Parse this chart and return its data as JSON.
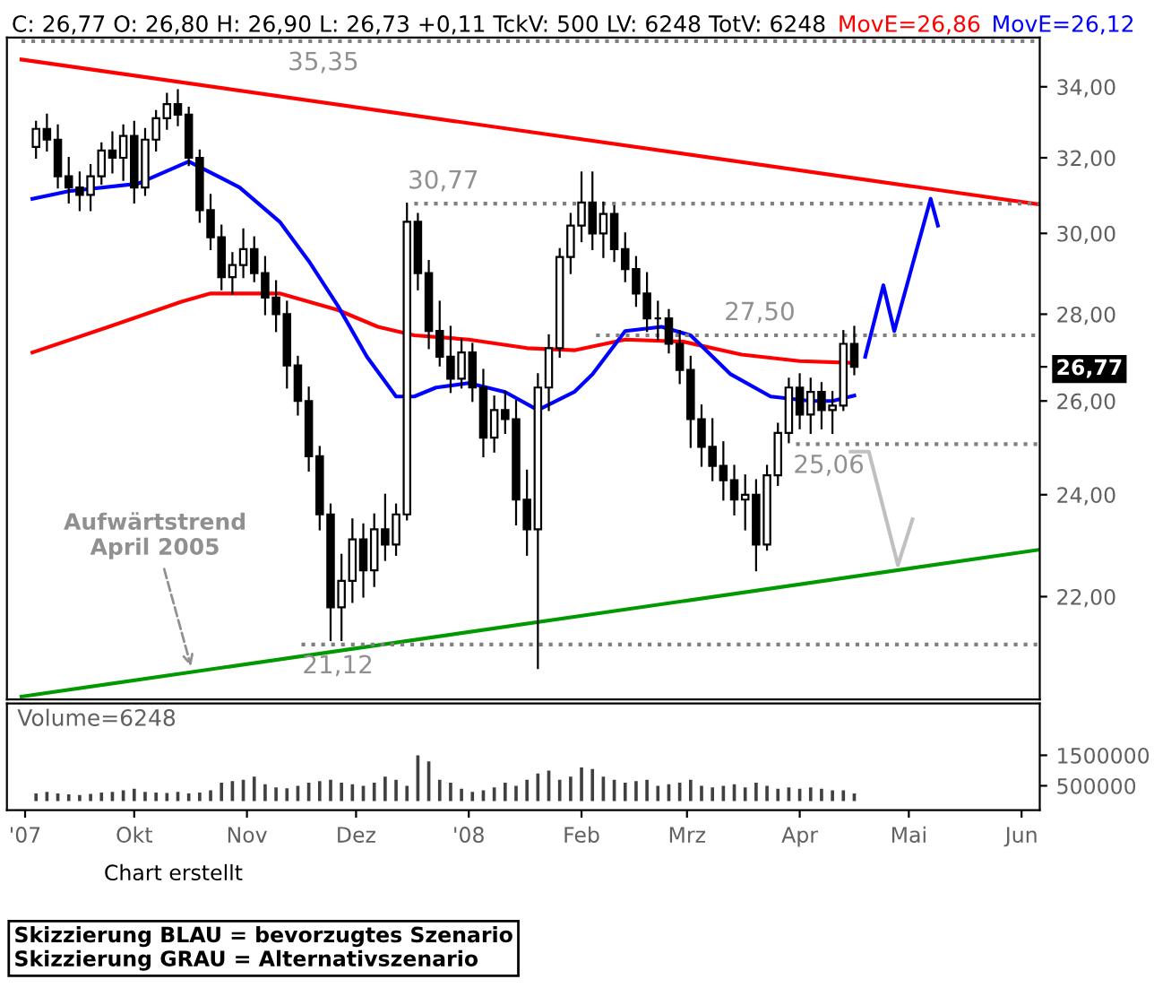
{
  "chart_data": [
    {
      "type": "candlestick",
      "title": "C: 26,77 O: 26,80 H: 26,90 L: 26,73 +0,11 TckV: 500 LV: 6248 TotV: 6248",
      "legend": "top",
      "log": true,
      "tick_labels": "y",
      "xlim": [
        "2007-08-27",
        "2008-06-06"
      ],
      "ylim": [
        20.15,
        35.46
      ],
      "yticks": [
        {
          "value": 22,
          "label": "22,00"
        },
        {
          "value": 24,
          "label": "24,00"
        },
        {
          "value": 26,
          "label": "26,00"
        },
        {
          "value": 26.77,
          "label": "26,77"
        },
        {
          "value": 28,
          "label": "28,00"
        },
        {
          "value": 30,
          "label": "30,00"
        },
        {
          "value": 32,
          "label": "32,00"
        },
        {
          "value": 34,
          "label": "34,00"
        }
      ],
      "x": [
        "2007-09-04",
        "2007-09-07",
        "2007-09-10",
        "2007-09-13",
        "2007-09-16",
        "2007-09-19",
        "2007-09-22",
        "2007-09-25",
        "2007-09-28",
        "2007-10-01",
        "2007-10-04",
        "2007-10-07",
        "2007-10-10",
        "2007-10-13",
        "2007-10-16",
        "2007-10-19",
        "2007-10-22",
        "2007-10-25",
        "2007-10-28",
        "2007-10-31",
        "2007-11-03",
        "2007-11-06",
        "2007-11-09",
        "2007-11-12",
        "2007-11-15",
        "2007-11-18",
        "2007-11-21",
        "2007-11-24",
        "2007-11-27",
        "2007-11-30",
        "2007-12-03",
        "2007-12-06",
        "2007-12-09",
        "2007-12-12",
        "2007-12-15",
        "2007-12-18",
        "2007-12-21",
        "2007-12-24",
        "2007-12-27",
        "2007-12-30",
        "2008-01-02",
        "2008-01-05",
        "2008-01-08",
        "2008-01-11",
        "2008-01-14",
        "2008-01-17",
        "2008-01-20",
        "2008-01-23",
        "2008-01-26",
        "2008-01-29",
        "2008-02-01",
        "2008-02-04",
        "2008-02-07",
        "2008-02-10",
        "2008-02-13",
        "2008-02-16",
        "2008-02-19",
        "2008-02-22",
        "2008-02-25",
        "2008-02-28",
        "2008-03-02",
        "2008-03-05",
        "2008-03-08",
        "2008-03-11",
        "2008-03-14",
        "2008-03-17",
        "2008-03-20",
        "2008-03-23",
        "2008-03-26",
        "2008-03-29",
        "2008-04-01",
        "2008-04-04",
        "2008-04-07",
        "2008-04-10",
        "2008-04-13",
        "2008-04-16"
      ],
      "ohlc": [
        [
          32.3,
          33.0,
          32.0,
          32.8
        ],
        [
          32.8,
          33.2,
          32.2,
          32.5
        ],
        [
          32.5,
          32.9,
          31.2,
          31.5
        ],
        [
          31.5,
          32.0,
          30.8,
          31.2
        ],
        [
          31.2,
          31.6,
          30.6,
          31.0
        ],
        [
          31.0,
          31.8,
          30.6,
          31.5
        ],
        [
          31.5,
          32.4,
          31.3,
          32.2
        ],
        [
          32.2,
          32.7,
          31.6,
          32.0
        ],
        [
          32.0,
          32.9,
          31.4,
          32.6
        ],
        [
          32.6,
          33.0,
          30.8,
          31.2
        ],
        [
          31.2,
          32.8,
          31.0,
          32.5
        ],
        [
          32.5,
          33.3,
          32.2,
          33.1
        ],
        [
          33.1,
          33.8,
          32.8,
          33.5
        ],
        [
          33.5,
          33.9,
          32.9,
          33.2
        ],
        [
          33.2,
          33.4,
          31.8,
          32.0
        ],
        [
          32.0,
          32.2,
          30.3,
          30.6
        ],
        [
          30.6,
          31.0,
          29.6,
          29.9
        ],
        [
          29.9,
          30.2,
          28.6,
          28.9
        ],
        [
          28.9,
          29.5,
          28.5,
          29.2
        ],
        [
          29.2,
          30.1,
          28.9,
          29.6
        ],
        [
          29.6,
          29.9,
          28.8,
          29.0
        ],
        [
          29.0,
          29.4,
          28.0,
          28.4
        ],
        [
          28.4,
          28.8,
          27.6,
          28.0
        ],
        [
          28.0,
          28.3,
          26.3,
          26.8
        ],
        [
          26.8,
          27.0,
          25.7,
          26.0
        ],
        [
          26.0,
          26.3,
          24.5,
          24.8
        ],
        [
          24.8,
          25.0,
          23.3,
          23.6
        ],
        [
          23.6,
          23.8,
          21.2,
          21.8
        ],
        [
          21.8,
          22.8,
          21.2,
          22.3
        ],
        [
          22.3,
          23.5,
          21.9,
          23.1
        ],
        [
          23.1,
          23.4,
          22.0,
          22.5
        ],
        [
          22.5,
          23.6,
          22.2,
          23.3
        ],
        [
          23.3,
          24.0,
          22.7,
          23.0
        ],
        [
          23.0,
          23.8,
          22.8,
          23.6
        ],
        [
          23.6,
          30.77,
          23.5,
          30.3
        ],
        [
          30.3,
          30.5,
          28.6,
          29.0
        ],
        [
          29.0,
          29.3,
          27.2,
          27.6
        ],
        [
          27.6,
          28.3,
          26.8,
          27.0
        ],
        [
          27.0,
          27.7,
          26.2,
          26.5
        ],
        [
          26.5,
          27.4,
          26.3,
          27.1
        ],
        [
          27.1,
          27.3,
          26.0,
          26.3
        ],
        [
          26.3,
          26.7,
          24.8,
          25.2
        ],
        [
          25.2,
          26.1,
          24.9,
          25.8
        ],
        [
          25.8,
          26.2,
          25.3,
          25.6
        ],
        [
          25.6,
          26.0,
          23.4,
          23.9
        ],
        [
          23.9,
          24.5,
          22.8,
          23.3
        ],
        [
          23.3,
          26.6,
          20.7,
          26.3
        ],
        [
          26.3,
          27.5,
          25.8,
          27.2
        ],
        [
          27.2,
          29.6,
          27.0,
          29.4
        ],
        [
          29.4,
          30.5,
          29.0,
          30.2
        ],
        [
          30.2,
          31.6,
          29.8,
          30.8
        ],
        [
          30.8,
          31.6,
          29.6,
          30.0
        ],
        [
          30.0,
          30.8,
          29.4,
          30.5
        ],
        [
          30.5,
          30.7,
          29.3,
          29.6
        ],
        [
          29.6,
          30.0,
          28.8,
          29.1
        ],
        [
          29.1,
          29.4,
          28.2,
          28.5
        ],
        [
          28.5,
          29.0,
          27.6,
          27.9
        ],
        [
          27.9,
          28.3,
          27.4,
          27.9
        ],
        [
          27.9,
          28.1,
          27.1,
          27.3
        ],
        [
          27.3,
          27.6,
          26.4,
          26.7
        ],
        [
          26.7,
          27.0,
          25.0,
          25.6
        ],
        [
          25.6,
          25.9,
          24.6,
          25.0
        ],
        [
          25.0,
          25.6,
          24.3,
          24.6
        ],
        [
          24.6,
          25.1,
          23.9,
          24.3
        ],
        [
          24.3,
          24.6,
          23.6,
          23.9
        ],
        [
          23.9,
          24.4,
          23.3,
          24.0
        ],
        [
          24.0,
          24.3,
          22.5,
          23.0
        ],
        [
          23.0,
          24.6,
          22.9,
          24.4
        ],
        [
          24.4,
          25.5,
          24.2,
          25.3
        ],
        [
          25.3,
          26.5,
          25.1,
          26.3
        ],
        [
          26.3,
          26.6,
          25.4,
          25.7
        ],
        [
          25.7,
          26.5,
          25.3,
          26.2
        ],
        [
          26.2,
          26.4,
          25.4,
          25.8
        ],
        [
          25.8,
          26.2,
          25.3,
          25.9
        ],
        [
          25.9,
          27.6,
          25.8,
          27.3
        ],
        [
          27.3,
          27.7,
          26.6,
          26.77
        ]
      ],
      "series": [
        {
          "type": "line",
          "name": "MovE=26,86",
          "color": "#ff0000",
          "line_style": "solid",
          "x": [
            "2007-09-03",
            "2007-09-24",
            "2007-10-14",
            "2007-10-22",
            "2007-11-10",
            "2007-11-26",
            "2007-12-07",
            "2007-12-17",
            "2008-01-01",
            "2008-01-17",
            "2008-01-30",
            "2008-02-13",
            "2008-02-29",
            "2008-03-16",
            "2008-04-01",
            "2008-04-16"
          ],
          "values": [
            27.1,
            27.7,
            28.3,
            28.5,
            28.5,
            28.1,
            27.7,
            27.5,
            27.4,
            27.2,
            27.15,
            27.4,
            27.35,
            27.05,
            26.9,
            26.86
          ]
        },
        {
          "type": "line",
          "name": "MovE=26,12",
          "color": "#0000ff",
          "line_style": "solid",
          "x": [
            "2007-09-03",
            "2007-09-13",
            "2007-10-02",
            "2007-10-16",
            "2007-10-30",
            "2007-11-10",
            "2007-11-18",
            "2007-11-26",
            "2007-12-04",
            "2007-12-12",
            "2007-12-17",
            "2007-12-23",
            "2008-01-01",
            "2008-01-11",
            "2008-01-20",
            "2008-01-30",
            "2008-02-04",
            "2008-02-13",
            "2008-02-23",
            "2008-03-02",
            "2008-03-13",
            "2008-03-24",
            "2008-04-04",
            "2008-04-10",
            "2008-04-16"
          ],
          "values": [
            30.9,
            31.1,
            31.3,
            31.9,
            31.2,
            30.3,
            29.3,
            28.2,
            27.0,
            26.1,
            26.1,
            26.3,
            26.4,
            26.2,
            25.8,
            26.2,
            26.6,
            27.6,
            27.7,
            27.5,
            26.6,
            26.1,
            26.0,
            26.0,
            26.12
          ]
        },
        {
          "type": "line",
          "color": "#ff0000",
          "line_style": "solid",
          "x": [
            "2007-08-31",
            "2008-06-06"
          ],
          "values": [
            34.8,
            30.75
          ]
        },
        {
          "type": "line",
          "color": "#009900",
          "line_style": "solid",
          "x": [
            "2007-08-31",
            "2008-06-06"
          ],
          "values": [
            20.2,
            22.9
          ]
        },
        {
          "type": "line",
          "color": "#808080",
          "line_style": "dotted",
          "x": [
            "2007-08-31",
            "2008-06-06"
          ],
          "values": [
            35.35,
            35.35
          ]
        },
        {
          "type": "line",
          "color": "#808080",
          "line_style": "dotted",
          "x": [
            "2007-12-17",
            "2008-06-06"
          ],
          "values": [
            30.77,
            30.77
          ]
        },
        {
          "type": "line",
          "color": "#808080",
          "line_style": "dotted",
          "x": [
            "2008-02-05",
            "2008-06-06"
          ],
          "values": [
            27.5,
            27.5
          ]
        },
        {
          "type": "line",
          "color": "#808080",
          "line_style": "dotted",
          "x": [
            "2008-03-31",
            "2008-06-06"
          ],
          "values": [
            25.06,
            25.06
          ]
        },
        {
          "type": "line",
          "color": "#808080",
          "line_style": "dotted",
          "x": [
            "2007-11-16",
            "2008-06-06"
          ],
          "values": [
            21.12,
            21.12
          ]
        },
        {
          "type": "line",
          "color": "#0000ff",
          "line_style": "solid",
          "x": [
            "2008-04-19",
            "2008-04-24",
            "2008-04-27",
            "2008-05-07",
            "2008-05-09"
          ],
          "values": [
            27.0,
            28.7,
            27.6,
            30.9,
            30.2
          ]
        },
        {
          "type": "line",
          "color": "#c0c0c0",
          "line_style": "solid",
          "x": [
            "2008-04-15",
            "2008-04-20",
            "2008-04-28",
            "2008-05-02"
          ],
          "values": [
            24.9,
            24.9,
            22.6,
            23.5
          ]
        }
      ],
      "annotations": [
        {
          "text": "35,35",
          "x": "2007-11-22",
          "y": 35.35
        },
        {
          "text": "30,77",
          "x": "2007-12-25",
          "y": 30.77
        },
        {
          "text": "27,50",
          "x": "2008-03-21",
          "y": 27.5
        },
        {
          "text": "25,06",
          "x": "2008-04-09",
          "y": 25.06
        },
        {
          "text": "21,12",
          "x": "2007-11-26",
          "y": 21.12
        },
        {
          "text": "Aufwärtstrend\nApril 2005",
          "x": "2007-10-17",
          "y": 20.64
        },
        "Chart erstellt",
        "Skizzierung BLAU = bevorzugtes Szenario\nSkizzierung GRAU = Alternativszenario"
      ]
    },
    {
      "type": "bar",
      "title": "Volume=6248",
      "color": "#404040",
      "xlim": [
        "2007-08-27",
        "2008-06-06"
      ],
      "ylim": [
        -300000,
        3200000
      ],
      "yticks": [
        500000,
        1500000
      ],
      "xticks": [
        {
          "value": "2007-09-01",
          "label": "'07"
        },
        {
          "value": "2007-10-01",
          "label": "Okt"
        },
        {
          "value": "2007-11-01",
          "label": "Nov"
        },
        {
          "value": "2007-12-01",
          "label": "Dez"
        },
        {
          "value": "2008-01-01",
          "label": "'08"
        },
        {
          "value": "2008-02-01",
          "label": "Feb"
        },
        {
          "value": "2008-03-01",
          "label": "Mrz"
        },
        {
          "value": "2008-04-01",
          "label": "Apr"
        },
        {
          "value": "2008-05-01",
          "label": "Mai"
        },
        {
          "value": "2008-06-01",
          "label": "Jun"
        }
      ],
      "x": [
        "2007-09-04",
        "2007-09-07",
        "2007-09-10",
        "2007-09-13",
        "2007-09-16",
        "2007-09-19",
        "2007-09-22",
        "2007-09-25",
        "2007-09-28",
        "2007-10-01",
        "2007-10-04",
        "2007-10-07",
        "2007-10-10",
        "2007-10-13",
        "2007-10-16",
        "2007-10-19",
        "2007-10-22",
        "2007-10-25",
        "2007-10-28",
        "2007-10-31",
        "2007-11-03",
        "2007-11-06",
        "2007-11-09",
        "2007-11-12",
        "2007-11-15",
        "2007-11-18",
        "2007-11-21",
        "2007-11-24",
        "2007-11-27",
        "2007-11-30",
        "2007-12-03",
        "2007-12-06",
        "2007-12-09",
        "2007-12-12",
        "2007-12-15",
        "2007-12-18",
        "2007-12-21",
        "2007-12-24",
        "2007-12-27",
        "2007-12-30",
        "2008-01-02",
        "2008-01-05",
        "2008-01-08",
        "2008-01-11",
        "2008-01-14",
        "2008-01-17",
        "2008-01-20",
        "2008-01-23",
        "2008-01-26",
        "2008-01-29",
        "2008-02-01",
        "2008-02-04",
        "2008-02-07",
        "2008-02-10",
        "2008-02-13",
        "2008-02-16",
        "2008-02-19",
        "2008-02-22",
        "2008-02-25",
        "2008-02-28",
        "2008-03-02",
        "2008-03-05",
        "2008-03-08",
        "2008-03-11",
        "2008-03-14",
        "2008-03-17",
        "2008-03-20",
        "2008-03-23",
        "2008-03-26",
        "2008-03-29",
        "2008-04-01",
        "2008-04-04",
        "2008-04-07",
        "2008-04-10",
        "2008-04-13",
        "2008-04-16"
      ],
      "values": [
        250000,
        300000,
        250000,
        220000,
        200000,
        230000,
        280000,
        300000,
        350000,
        400000,
        300000,
        280000,
        260000,
        300000,
        250000,
        280000,
        350000,
        600000,
        650000,
        700000,
        800000,
        550000,
        450000,
        420000,
        500000,
        600000,
        650000,
        700000,
        600000,
        550000,
        500000,
        600000,
        800000,
        700000,
        500000,
        1500000,
        1300000,
        700000,
        600000,
        400000,
        300000,
        350000,
        450000,
        600000,
        500000,
        700000,
        900000,
        1000000,
        700000,
        800000,
        1100000,
        1050000,
        800000,
        700000,
        600000,
        650000,
        700000,
        500000,
        550000,
        600000,
        700000,
        500000,
        450000,
        500000,
        550000,
        450000,
        600000,
        500000,
        400000,
        450000,
        400000,
        450000,
        400000,
        350000,
        350000,
        250000
      ]
    }
  ]
}
